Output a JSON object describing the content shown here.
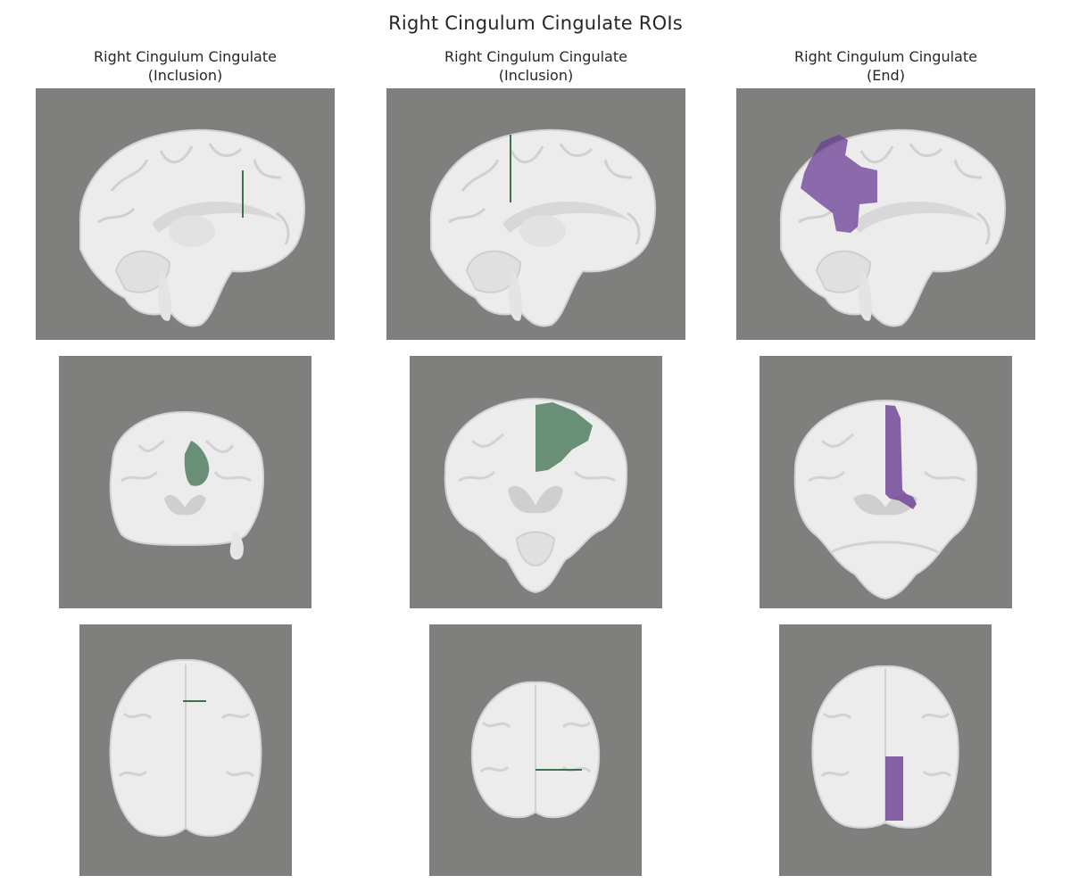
{
  "figure": {
    "title": "Right Cingulum Cingulate ROIs"
  },
  "columns": [
    {
      "line1": "Right Cingulum Cingulate",
      "line2": "(Inclusion)",
      "roi_color": "#3f7050"
    },
    {
      "line1": "Right Cingulum Cingulate",
      "line2": "(Inclusion)",
      "roi_color": "#3f7050"
    },
    {
      "line1": "Right Cingulum Cingulate",
      "line2": "(End)",
      "roi_color": "#6a3f94"
    }
  ],
  "views": [
    "sagittal",
    "coronal",
    "axial"
  ],
  "colors": {
    "background": "#7f7f7e",
    "brain": "#ececec",
    "sulcus": "#cfcfcf",
    "inclusion_roi": "#3f7050",
    "end_roi": "#6a3f94"
  }
}
